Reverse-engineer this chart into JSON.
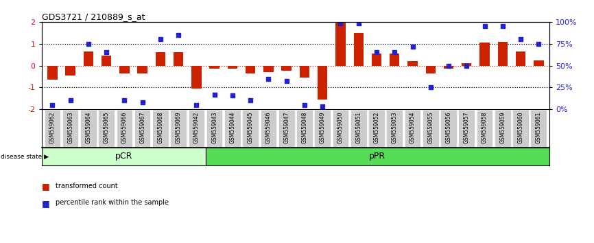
{
  "title": "GDS3721 / 210889_s_at",
  "samples": [
    "GSM559062",
    "GSM559063",
    "GSM559064",
    "GSM559065",
    "GSM559066",
    "GSM559067",
    "GSM559068",
    "GSM559069",
    "GSM559042",
    "GSM559043",
    "GSM559044",
    "GSM559045",
    "GSM559046",
    "GSM559047",
    "GSM559048",
    "GSM559049",
    "GSM559050",
    "GSM559051",
    "GSM559052",
    "GSM559053",
    "GSM559054",
    "GSM559055",
    "GSM559056",
    "GSM559057",
    "GSM559058",
    "GSM559059",
    "GSM559060",
    "GSM559061"
  ],
  "red_values": [
    -0.65,
    -0.45,
    0.65,
    0.45,
    -0.35,
    -0.35,
    0.6,
    0.6,
    -1.05,
    -0.15,
    -0.15,
    -0.35,
    -0.3,
    -0.25,
    -0.55,
    -1.55,
    1.95,
    1.5,
    0.55,
    0.55,
    0.2,
    -0.35,
    -0.15,
    0.1,
    1.05,
    1.1,
    0.65,
    0.25
  ],
  "blue_values": [
    5,
    10,
    75,
    65,
    10,
    8,
    80,
    85,
    5,
    17,
    16,
    10,
    35,
    32,
    5,
    3,
    98,
    98,
    65,
    65,
    72,
    25,
    50,
    50,
    95,
    95,
    80,
    75
  ],
  "pcr_count": 9,
  "ppr_count": 19,
  "ylim_left": [
    -2,
    2
  ],
  "yticks_left": [
    -2,
    -1,
    0,
    1,
    2
  ],
  "ytick_labels_right": [
    "0%",
    "25%",
    "50%",
    "75%",
    "100%"
  ],
  "ytick_vals_right": [
    0,
    25,
    50,
    75,
    100
  ],
  "bar_color": "#cc2200",
  "marker_color": "#2222cc",
  "pcr_color": "#ccffcc",
  "ppr_color": "#55dd55",
  "bg_color": "#ffffff",
  "legend_bar_label": "transformed count",
  "legend_marker_label": "percentile rank within the sample",
  "disease_state_label": "disease state",
  "pcr_label": "pCR",
  "ppr_label": "pPR",
  "ticklabel_bg": "#cccccc"
}
